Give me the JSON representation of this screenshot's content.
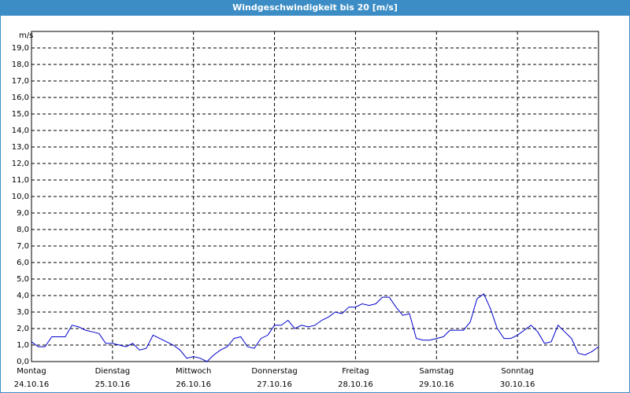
{
  "chart_data": {
    "type": "line",
    "title": "Windgeschwindigkeit bis 20 [m/s]",
    "y_unit": "m/s",
    "x": [
      0,
      2,
      4,
      6,
      8,
      10,
      12,
      14,
      16,
      18,
      20,
      22,
      24,
      26,
      28,
      30,
      32,
      34,
      36,
      38,
      40,
      42,
      44,
      46,
      48,
      50,
      52,
      54,
      56,
      58,
      60,
      62,
      64,
      66,
      68,
      70,
      72,
      74,
      76,
      78,
      80,
      82,
      84,
      86,
      88,
      90,
      92,
      94,
      96,
      98,
      100,
      102,
      104,
      106,
      108,
      110,
      112,
      114,
      116,
      118,
      120,
      122,
      124,
      126,
      128,
      130,
      132,
      134,
      136,
      138,
      140,
      142,
      144,
      146,
      148,
      150,
      152,
      154,
      156,
      158,
      160,
      162,
      164,
      166,
      168
    ],
    "series": [
      {
        "name": "Windgeschwindigkeit",
        "color": "#0000cc",
        "values": [
          1.2,
          0.9,
          0.9,
          1.5,
          1.5,
          1.5,
          2.2,
          2.1,
          1.9,
          1.8,
          1.7,
          1.1,
          1.1,
          1.0,
          0.9,
          1.1,
          0.7,
          0.8,
          1.6,
          1.4,
          1.2,
          1.0,
          0.7,
          0.2,
          0.3,
          0.2,
          0.0,
          0.4,
          0.7,
          0.9,
          1.4,
          1.5,
          0.9,
          0.8,
          1.4,
          1.6,
          2.2,
          2.2,
          2.5,
          2.0,
          2.2,
          2.1,
          2.2,
          2.5,
          2.7,
          3.0,
          2.9,
          3.3,
          3.3,
          3.5,
          3.4,
          3.5,
          3.9,
          3.9,
          3.3,
          2.8,
          2.9,
          1.4,
          1.3,
          1.3,
          1.4,
          1.5,
          1.9,
          1.9,
          1.9,
          2.4,
          3.8,
          4.1,
          3.2,
          2.0,
          1.4,
          1.4,
          1.6,
          1.9,
          2.2,
          1.8,
          1.1,
          1.2,
          2.2,
          1.8,
          1.4,
          0.5,
          0.4,
          0.6,
          0.9
        ]
      }
    ],
    "xlim": [
      0,
      168
    ],
    "xticks": [
      {
        "value": 0,
        "label": "Montag",
        "date": "24.10.16"
      },
      {
        "value": 24,
        "label": "Dienstag",
        "date": "25.10.16"
      },
      {
        "value": 48,
        "label": "Mittwoch",
        "date": "26.10.16"
      },
      {
        "value": 72,
        "label": "Donnerstag",
        "date": "27.10.16"
      },
      {
        "value": 96,
        "label": "Freitag",
        "date": "28.10.16"
      },
      {
        "value": 120,
        "label": "Samstag",
        "date": "29.10.16"
      },
      {
        "value": 144,
        "label": "Sonntag",
        "date": "30.10.16"
      }
    ],
    "ylim": [
      0,
      20
    ],
    "yticks": [
      {
        "value": 0,
        "label": "0,0"
      },
      {
        "value": 1,
        "label": "1,0"
      },
      {
        "value": 2,
        "label": "2,0"
      },
      {
        "value": 3,
        "label": "3,0"
      },
      {
        "value": 4,
        "label": "4,0"
      },
      {
        "value": 5,
        "label": "5,0"
      },
      {
        "value": 6,
        "label": "6,0"
      },
      {
        "value": 7,
        "label": "7,0"
      },
      {
        "value": 8,
        "label": "8,0"
      },
      {
        "value": 9,
        "label": "9,0"
      },
      {
        "value": 10,
        "label": "10,0"
      },
      {
        "value": 11,
        "label": "11,0"
      },
      {
        "value": 12,
        "label": "12,0"
      },
      {
        "value": 13,
        "label": "13,0"
      },
      {
        "value": 14,
        "label": "14,0"
      },
      {
        "value": 15,
        "label": "15,0"
      },
      {
        "value": 16,
        "label": "16,0"
      },
      {
        "value": 17,
        "label": "17,0"
      },
      {
        "value": 18,
        "label": "18,0"
      },
      {
        "value": 19,
        "label": "19,0"
      }
    ],
    "grid": true
  }
}
